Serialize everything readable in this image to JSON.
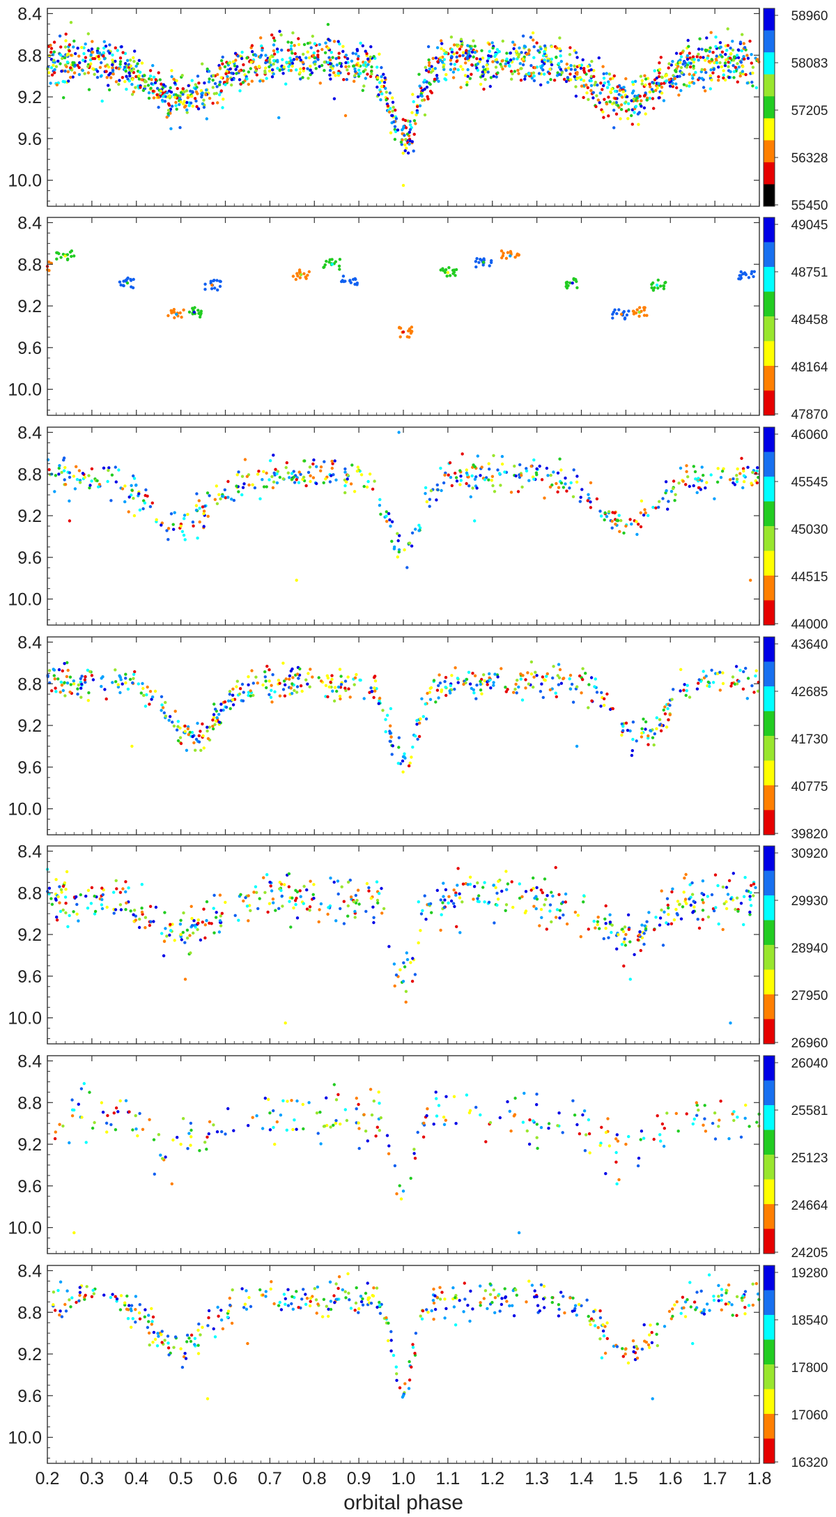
{
  "chart_data": {
    "type": "scatter",
    "xlabel": "orbital phase",
    "xlim": [
      0.2,
      1.8
    ],
    "x_ticks": [
      "0.2",
      "0.3",
      "0.4",
      "0.5",
      "0.6",
      "0.7",
      "0.8",
      "0.9",
      "1.0",
      "1.1",
      "1.2",
      "1.3",
      "1.4",
      "1.5",
      "1.6",
      "1.7",
      "1.8"
    ],
    "ylim": [
      10.25,
      8.35
    ],
    "y_ticks": [
      "8.4",
      "8.8",
      "9.2",
      "9.6",
      "10.0"
    ],
    "y_inverted": true,
    "colormap": [
      "#e60000",
      "#ff7f00",
      "#ffff00",
      "#99e62e",
      "#22cc22",
      "#00ffff",
      "#00a0ff",
      "#1060f0",
      "#0000e6"
    ],
    "panels": [
      {
        "colorbar_ticks": [
          "58960",
          "58083",
          "57205",
          "56328",
          "55450"
        ],
        "colorbar_extra_black": true,
        "density": 1700,
        "series_points": [
          {
            "x": 0.25,
            "y": 8.7
          },
          {
            "x": 0.5,
            "y": 9.25
          },
          {
            "x": 0.75,
            "y": 8.78
          },
          {
            "x": 1.0,
            "y": 9.5
          },
          {
            "x": 1.02,
            "y": 9.63
          },
          {
            "x": 1.25,
            "y": 8.7
          },
          {
            "x": 1.5,
            "y": 9.25
          },
          {
            "x": 1.75,
            "y": 8.8
          }
        ],
        "outliers": [
          {
            "x": 1.0,
            "y": 10.05
          },
          {
            "x": 0.72,
            "y": 9.4
          },
          {
            "x": 0.87,
            "y": 9.38
          }
        ]
      },
      {
        "colorbar_ticks": [
          "49045",
          "48751",
          "48458",
          "48164",
          "47870"
        ],
        "density": 0,
        "series_points": [
          {
            "x": 0.2,
            "y": 8.82
          },
          {
            "x": 0.24,
            "y": 8.72
          },
          {
            "x": 0.38,
            "y": 8.98
          },
          {
            "x": 0.49,
            "y": 9.28
          },
          {
            "x": 0.53,
            "y": 9.26
          },
          {
            "x": 0.57,
            "y": 9.0
          },
          {
            "x": 0.77,
            "y": 8.9
          },
          {
            "x": 0.84,
            "y": 8.8
          },
          {
            "x": 0.88,
            "y": 8.96
          },
          {
            "x": 1.0,
            "y": 9.45
          },
          {
            "x": 1.1,
            "y": 8.88
          },
          {
            "x": 1.18,
            "y": 8.78
          },
          {
            "x": 1.24,
            "y": 8.72
          },
          {
            "x": 1.38,
            "y": 8.98
          },
          {
            "x": 1.49,
            "y": 9.28
          },
          {
            "x": 1.53,
            "y": 9.26
          },
          {
            "x": 1.57,
            "y": 9.0
          },
          {
            "x": 1.77,
            "y": 8.9
          }
        ]
      },
      {
        "colorbar_ticks": [
          "46060",
          "45545",
          "45030",
          "44515",
          "44000"
        ],
        "density": 520,
        "series_points": [
          {
            "x": 0.3,
            "y": 8.75
          },
          {
            "x": 0.5,
            "y": 9.3
          },
          {
            "x": 0.75,
            "y": 8.85
          },
          {
            "x": 0.98,
            "y": 9.5
          },
          {
            "x": 1.3,
            "y": 8.75
          },
          {
            "x": 1.5,
            "y": 9.3
          },
          {
            "x": 1.75,
            "y": 8.85
          }
        ],
        "outliers": [
          {
            "x": 0.76,
            "y": 9.82
          },
          {
            "x": 0.99,
            "y": 8.4
          },
          {
            "x": 1.78,
            "y": 9.82
          },
          {
            "x": 1.16,
            "y": 9.25
          },
          {
            "x": 0.25,
            "y": 9.25
          }
        ]
      },
      {
        "colorbar_ticks": [
          "43640",
          "42685",
          "41730",
          "40775",
          "39820"
        ],
        "density": 600,
        "series_points": [
          {
            "x": 0.3,
            "y": 8.72
          },
          {
            "x": 0.55,
            "y": 9.3
          },
          {
            "x": 0.75,
            "y": 8.8
          },
          {
            "x": 1.0,
            "y": 9.5
          },
          {
            "x": 1.3,
            "y": 8.72
          },
          {
            "x": 1.55,
            "y": 9.3
          },
          {
            "x": 1.75,
            "y": 8.8
          }
        ],
        "outliers": [
          {
            "x": 0.39,
            "y": 9.4
          },
          {
            "x": 1.39,
            "y": 9.4
          }
        ]
      },
      {
        "colorbar_ticks": [
          "30920",
          "29930",
          "28940",
          "27950",
          "26960"
        ],
        "density": 560,
        "series_points": [
          {
            "x": 0.3,
            "y": 8.75
          },
          {
            "x": 0.5,
            "y": 9.2
          },
          {
            "x": 0.75,
            "y": 8.85
          },
          {
            "x": 1.0,
            "y": 9.65
          },
          {
            "x": 1.3,
            "y": 8.75
          },
          {
            "x": 1.5,
            "y": 9.2
          },
          {
            "x": 1.75,
            "y": 8.85
          }
        ],
        "outliers": [
          {
            "x": 0.735,
            "y": 10.05
          },
          {
            "x": 1.735,
            "y": 10.05
          },
          {
            "x": 0.51,
            "y": 9.63
          },
          {
            "x": 1.51,
            "y": 9.63
          }
        ]
      },
      {
        "colorbar_ticks": [
          "26040",
          "25581",
          "25123",
          "24664",
          "24205"
        ],
        "density": 260,
        "series_points": [
          {
            "x": 0.35,
            "y": 8.9
          },
          {
            "x": 0.5,
            "y": 9.2
          },
          {
            "x": 0.7,
            "y": 8.9
          },
          {
            "x": 1.0,
            "y": 9.65
          },
          {
            "x": 1.35,
            "y": 8.9
          },
          {
            "x": 1.5,
            "y": 9.2
          },
          {
            "x": 1.7,
            "y": 8.9
          }
        ],
        "outliers": [
          {
            "x": 0.26,
            "y": 10.05
          },
          {
            "x": 1.26,
            "y": 10.05
          },
          {
            "x": 0.48,
            "y": 9.58
          },
          {
            "x": 1.48,
            "y": 9.58
          }
        ]
      },
      {
        "colorbar_ticks": [
          "19280",
          "18540",
          "17800",
          "17060",
          "16320"
        ],
        "density": 460,
        "series_points": [
          {
            "x": 0.3,
            "y": 8.65
          },
          {
            "x": 0.5,
            "y": 9.15
          },
          {
            "x": 0.75,
            "y": 8.65
          },
          {
            "x": 1.0,
            "y": 9.6
          },
          {
            "x": 1.3,
            "y": 8.65
          },
          {
            "x": 1.5,
            "y": 9.15
          },
          {
            "x": 1.75,
            "y": 8.65
          }
        ],
        "outliers": [
          {
            "x": 0.56,
            "y": 9.63
          },
          {
            "x": 1.56,
            "y": 9.63
          },
          {
            "x": 0.65,
            "y": 9.1
          },
          {
            "x": 1.65,
            "y": 9.1
          }
        ]
      }
    ]
  }
}
